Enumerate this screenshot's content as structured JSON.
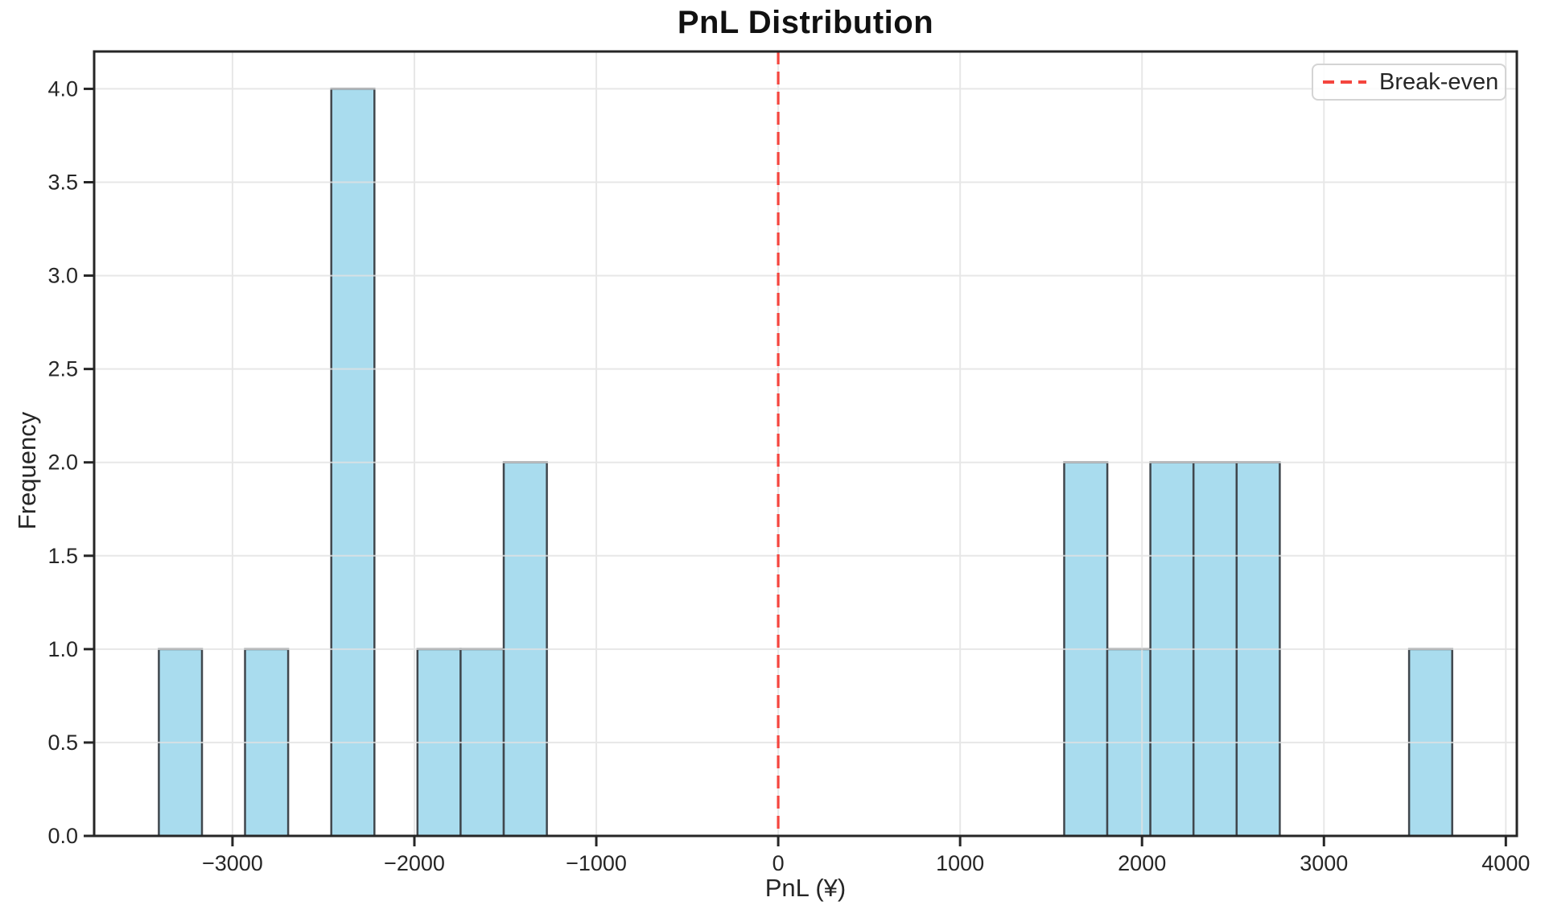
{
  "chart_data": {
    "type": "histogram",
    "title": "PnL Distribution",
    "xlabel": "PnL (¥)",
    "ylabel": "Frequency",
    "total_observations": 20,
    "num_bins": 30,
    "bin_width": 237,
    "bins": [
      {
        "x0": -3405,
        "x1": -3168,
        "count": 1
      },
      {
        "x0": -2931,
        "x1": -2694,
        "count": 1
      },
      {
        "x0": -2457,
        "x1": -2220,
        "count": 4
      },
      {
        "x0": -1983,
        "x1": -1746,
        "count": 1
      },
      {
        "x0": -1746,
        "x1": -1509,
        "count": 1
      },
      {
        "x0": -1509,
        "x1": -1272,
        "count": 2
      },
      {
        "x0": 1572,
        "x1": 1809,
        "count": 2
      },
      {
        "x0": 1809,
        "x1": 2046,
        "count": 1
      },
      {
        "x0": 2046,
        "x1": 2283,
        "count": 2
      },
      {
        "x0": 2283,
        "x1": 2520,
        "count": 2
      },
      {
        "x0": 2520,
        "x1": 2757,
        "count": 2
      },
      {
        "x0": 3468,
        "x1": 3705,
        "count": 1
      }
    ],
    "xlim": [
      -3760.5,
      4060.5
    ],
    "ylim": [
      0,
      4.2
    ],
    "x_ticks": [
      {
        "value": -3000,
        "label": "−3000"
      },
      {
        "value": -2000,
        "label": "−2000"
      },
      {
        "value": -1000,
        "label": "−1000"
      },
      {
        "value": 0,
        "label": "0"
      },
      {
        "value": 1000,
        "label": "1000"
      },
      {
        "value": 2000,
        "label": "2000"
      },
      {
        "value": 3000,
        "label": "3000"
      },
      {
        "value": 4000,
        "label": "4000"
      }
    ],
    "y_ticks": [
      {
        "value": 0.0,
        "label": "0.0"
      },
      {
        "value": 0.5,
        "label": "0.5"
      },
      {
        "value": 1.0,
        "label": "1.0"
      },
      {
        "value": 1.5,
        "label": "1.5"
      },
      {
        "value": 2.0,
        "label": "2.0"
      },
      {
        "value": 2.5,
        "label": "2.5"
      },
      {
        "value": 3.0,
        "label": "3.0"
      },
      {
        "value": 3.5,
        "label": "3.5"
      },
      {
        "value": 4.0,
        "label": "4.0"
      }
    ],
    "grid": true,
    "legend": {
      "label": "Break-even",
      "position": "top-right"
    },
    "break_even_line": {
      "x": 0,
      "style": "dashed"
    },
    "colors": {
      "bar_fill": "#a9dcee",
      "bar_edge": "#40474d",
      "grid": "#e2e2e2",
      "axis": "#262626",
      "tick_text": "#262626",
      "break_even": "#f4453e",
      "legend_border": "#d4d4d4"
    }
  }
}
